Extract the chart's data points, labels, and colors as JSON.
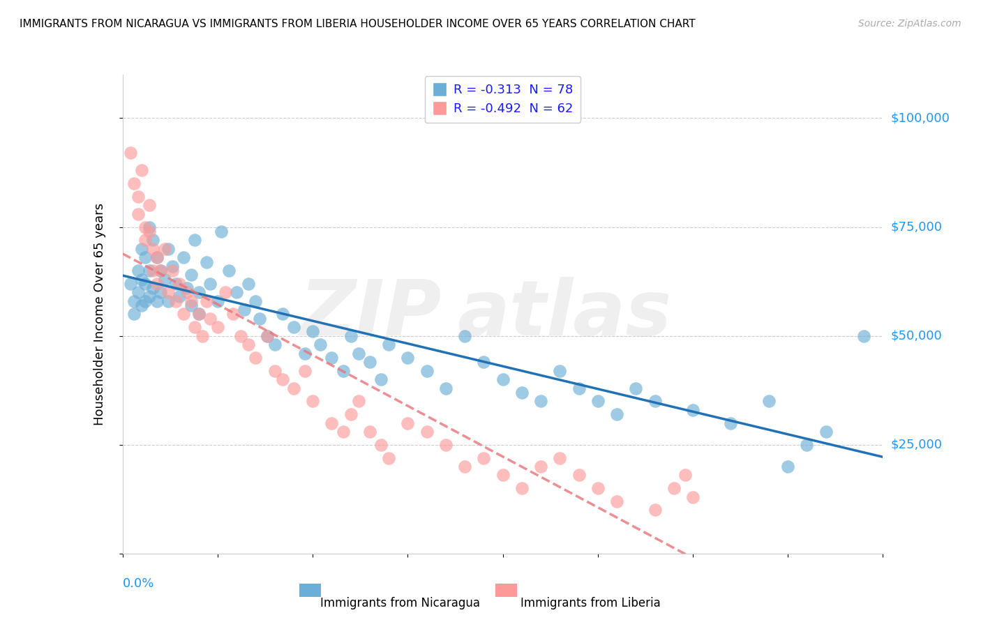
{
  "title": "IMMIGRANTS FROM NICARAGUA VS IMMIGRANTS FROM LIBERIA HOUSEHOLDER INCOME OVER 65 YEARS CORRELATION CHART",
  "source": "Source: ZipAtlas.com",
  "ylabel": "Householder Income Over 65 years",
  "xlim": [
    0.0,
    0.2
  ],
  "ylim": [
    0,
    110000
  ],
  "yticks": [
    0,
    25000,
    50000,
    75000,
    100000
  ],
  "xticks": [
    0.0,
    0.025,
    0.05,
    0.075,
    0.1,
    0.125,
    0.15,
    0.175,
    0.2
  ],
  "nicaragua_color": "#6baed6",
  "liberia_color": "#fb9a99",
  "nicaragua_line_color": "#2171b5",
  "liberia_line_color": "#e8737a",
  "nicaragua_R": -0.313,
  "nicaragua_N": 78,
  "liberia_R": -0.492,
  "liberia_N": 62,
  "legend_label_nicaragua": "Immigrants from Nicaragua",
  "legend_label_liberia": "Immigrants from Liberia",
  "nicaragua_scatter_x": [
    0.002,
    0.003,
    0.003,
    0.004,
    0.004,
    0.005,
    0.005,
    0.005,
    0.006,
    0.006,
    0.006,
    0.007,
    0.007,
    0.007,
    0.008,
    0.008,
    0.009,
    0.009,
    0.01,
    0.01,
    0.011,
    0.012,
    0.012,
    0.013,
    0.014,
    0.015,
    0.016,
    0.017,
    0.018,
    0.018,
    0.019,
    0.02,
    0.02,
    0.022,
    0.023,
    0.025,
    0.026,
    0.028,
    0.03,
    0.032,
    0.033,
    0.035,
    0.036,
    0.038,
    0.04,
    0.042,
    0.045,
    0.048,
    0.05,
    0.052,
    0.055,
    0.058,
    0.06,
    0.062,
    0.065,
    0.068,
    0.07,
    0.075,
    0.08,
    0.085,
    0.09,
    0.095,
    0.1,
    0.105,
    0.11,
    0.115,
    0.12,
    0.125,
    0.13,
    0.135,
    0.14,
    0.15,
    0.16,
    0.17,
    0.175,
    0.18,
    0.185,
    0.195
  ],
  "nicaragua_scatter_y": [
    62000,
    58000,
    55000,
    65000,
    60000,
    70000,
    63000,
    57000,
    68000,
    62000,
    58000,
    75000,
    65000,
    59000,
    72000,
    61000,
    68000,
    58000,
    65000,
    60000,
    63000,
    70000,
    58000,
    66000,
    62000,
    59000,
    68000,
    61000,
    64000,
    57000,
    72000,
    60000,
    55000,
    67000,
    62000,
    58000,
    74000,
    65000,
    60000,
    56000,
    62000,
    58000,
    54000,
    50000,
    48000,
    55000,
    52000,
    46000,
    51000,
    48000,
    45000,
    42000,
    50000,
    46000,
    44000,
    40000,
    48000,
    45000,
    42000,
    38000,
    50000,
    44000,
    40000,
    37000,
    35000,
    42000,
    38000,
    35000,
    32000,
    38000,
    35000,
    33000,
    30000,
    35000,
    20000,
    25000,
    28000,
    50000
  ],
  "liberia_scatter_x": [
    0.002,
    0.003,
    0.004,
    0.004,
    0.005,
    0.006,
    0.006,
    0.007,
    0.007,
    0.008,
    0.008,
    0.009,
    0.009,
    0.01,
    0.011,
    0.012,
    0.013,
    0.014,
    0.015,
    0.016,
    0.017,
    0.018,
    0.019,
    0.02,
    0.021,
    0.022,
    0.023,
    0.025,
    0.027,
    0.029,
    0.031,
    0.033,
    0.035,
    0.038,
    0.04,
    0.042,
    0.045,
    0.048,
    0.05,
    0.055,
    0.058,
    0.06,
    0.062,
    0.065,
    0.068,
    0.07,
    0.075,
    0.08,
    0.085,
    0.09,
    0.095,
    0.1,
    0.105,
    0.11,
    0.115,
    0.12,
    0.125,
    0.13,
    0.14,
    0.145,
    0.148,
    0.15
  ],
  "liberia_scatter_y": [
    92000,
    85000,
    82000,
    78000,
    88000,
    75000,
    72000,
    80000,
    74000,
    70000,
    65000,
    68000,
    62000,
    65000,
    70000,
    60000,
    65000,
    58000,
    62000,
    55000,
    60000,
    58000,
    52000,
    55000,
    50000,
    58000,
    54000,
    52000,
    60000,
    55000,
    50000,
    48000,
    45000,
    50000,
    42000,
    40000,
    38000,
    42000,
    35000,
    30000,
    28000,
    32000,
    35000,
    28000,
    25000,
    22000,
    30000,
    28000,
    25000,
    20000,
    22000,
    18000,
    15000,
    20000,
    22000,
    18000,
    15000,
    12000,
    10000,
    15000,
    18000,
    13000
  ]
}
